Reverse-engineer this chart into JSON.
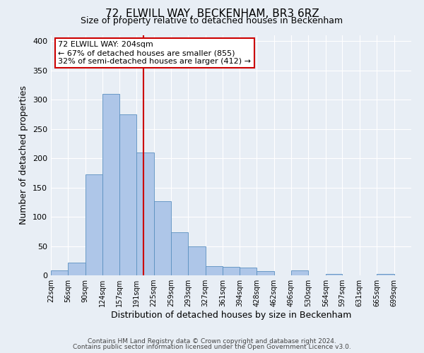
{
  "title": "72, ELWILL WAY, BECKENHAM, BR3 6RZ",
  "subtitle": "Size of property relative to detached houses in Beckenham",
  "xlabel": "Distribution of detached houses by size in Beckenham",
  "ylabel": "Number of detached properties",
  "bin_labels": [
    "22sqm",
    "56sqm",
    "90sqm",
    "124sqm",
    "157sqm",
    "191sqm",
    "225sqm",
    "259sqm",
    "293sqm",
    "327sqm",
    "361sqm",
    "394sqm",
    "428sqm",
    "462sqm",
    "496sqm",
    "530sqm",
    "564sqm",
    "597sqm",
    "631sqm",
    "665sqm",
    "699sqm"
  ],
  "bin_edges": [
    22,
    56,
    90,
    124,
    157,
    191,
    225,
    259,
    293,
    327,
    361,
    394,
    428,
    462,
    496,
    530,
    564,
    597,
    631,
    665,
    699
  ],
  "bar_heights": [
    8,
    22,
    172,
    310,
    275,
    210,
    127,
    74,
    49,
    16,
    15,
    13,
    7,
    0,
    8,
    0,
    3,
    0,
    0,
    3
  ],
  "bar_color": "#aec6e8",
  "bar_edge_color": "#5a90c0",
  "vline_x": 204,
  "vline_color": "#cc0000",
  "annotation_text": "72 ELWILL WAY: 204sqm\n← 67% of detached houses are smaller (855)\n32% of semi-detached houses are larger (412) →",
  "annotation_box_color": "#ffffff",
  "annotation_box_edge_color": "#cc0000",
  "ylim": [
    0,
    410
  ],
  "yticks": [
    0,
    50,
    100,
    150,
    200,
    250,
    300,
    350,
    400
  ],
  "background_color": "#e8eef5",
  "footer_line1": "Contains HM Land Registry data © Crown copyright and database right 2024.",
  "footer_line2": "Contains public sector information licensed under the Open Government Licence v3.0."
}
